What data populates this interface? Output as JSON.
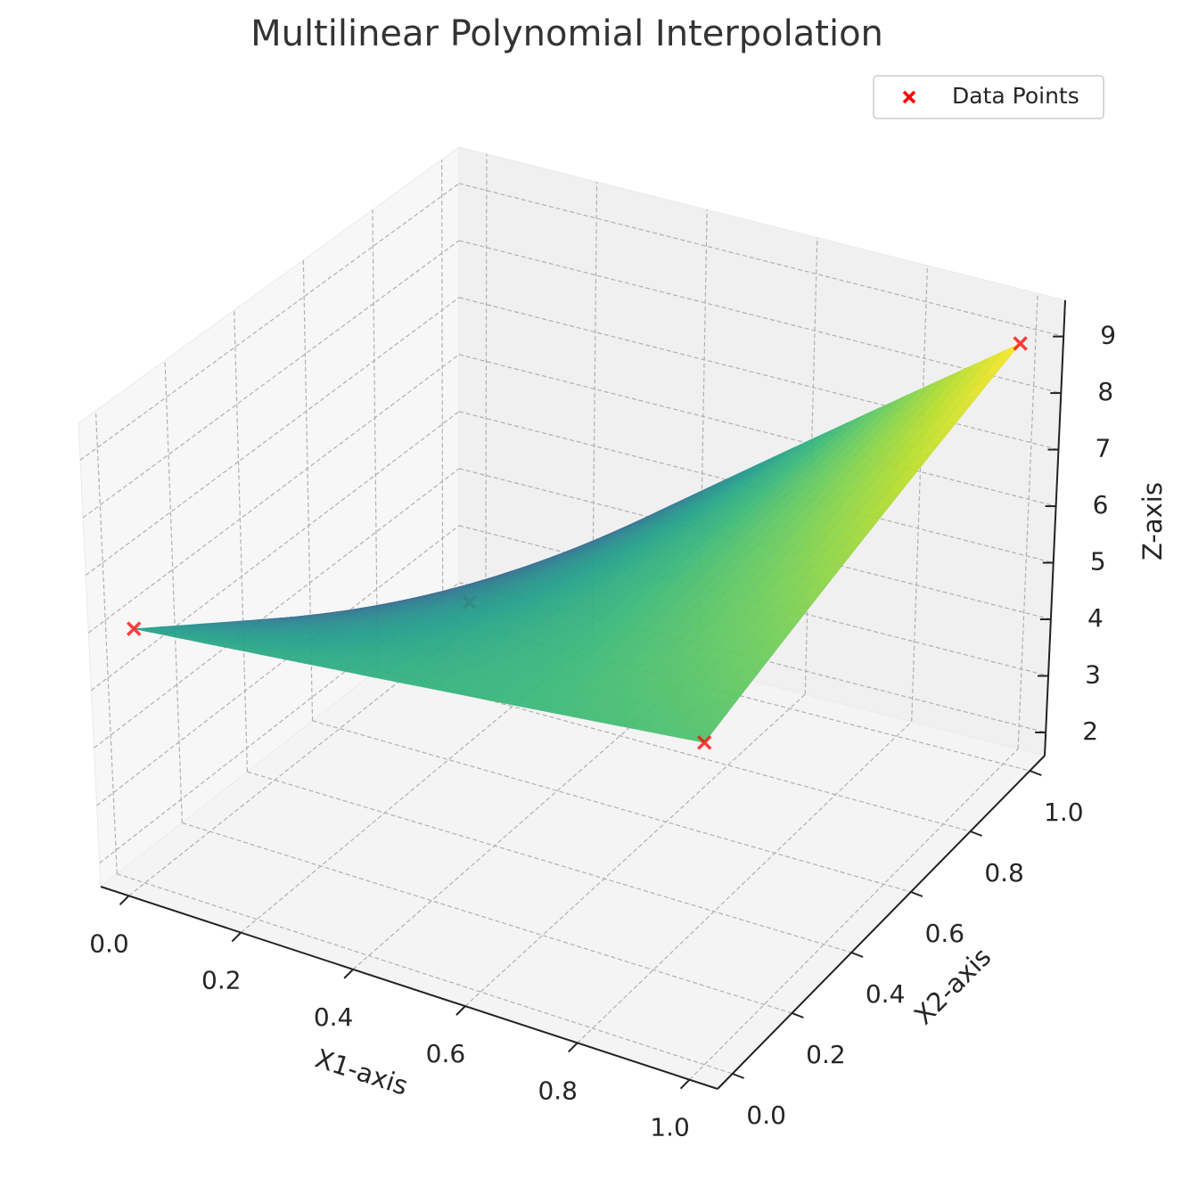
{
  "chart_data": {
    "type": "surface3d",
    "title": "Multilinear Polynomial Interpolation",
    "xlabel": "X1-axis",
    "ylabel": "X2-axis",
    "zlabel": "Z-axis",
    "series": [
      {
        "name": "Data Points",
        "color": "red",
        "marker": "x",
        "x1": [
          0,
          1,
          0,
          1
        ],
        "x2": [
          0,
          0,
          1,
          1
        ],
        "values": [
          6,
          7,
          2,
          9
        ]
      }
    ],
    "colormap": "viridis",
    "xlim": [
      -0.05,
      1.05
    ],
    "xticks": [
      {
        "value": 0,
        "label": "0.0"
      },
      0.2,
      0.4,
      0.6,
      0.8,
      {
        "value": 1,
        "label": "1.0"
      }
    ],
    "ylim": [
      -0.05,
      1.05
    ],
    "yticks": [
      {
        "value": 0,
        "label": "0.0"
      },
      0.2,
      0.4,
      0.6,
      0.8,
      {
        "value": 1,
        "label": "1.0"
      }
    ],
    "zlim": [
      1.59,
      9.64
    ],
    "zticks": [
      2,
      3,
      4,
      5,
      6,
      7,
      8,
      9
    ],
    "grid": true,
    "legend": "upper right"
  }
}
